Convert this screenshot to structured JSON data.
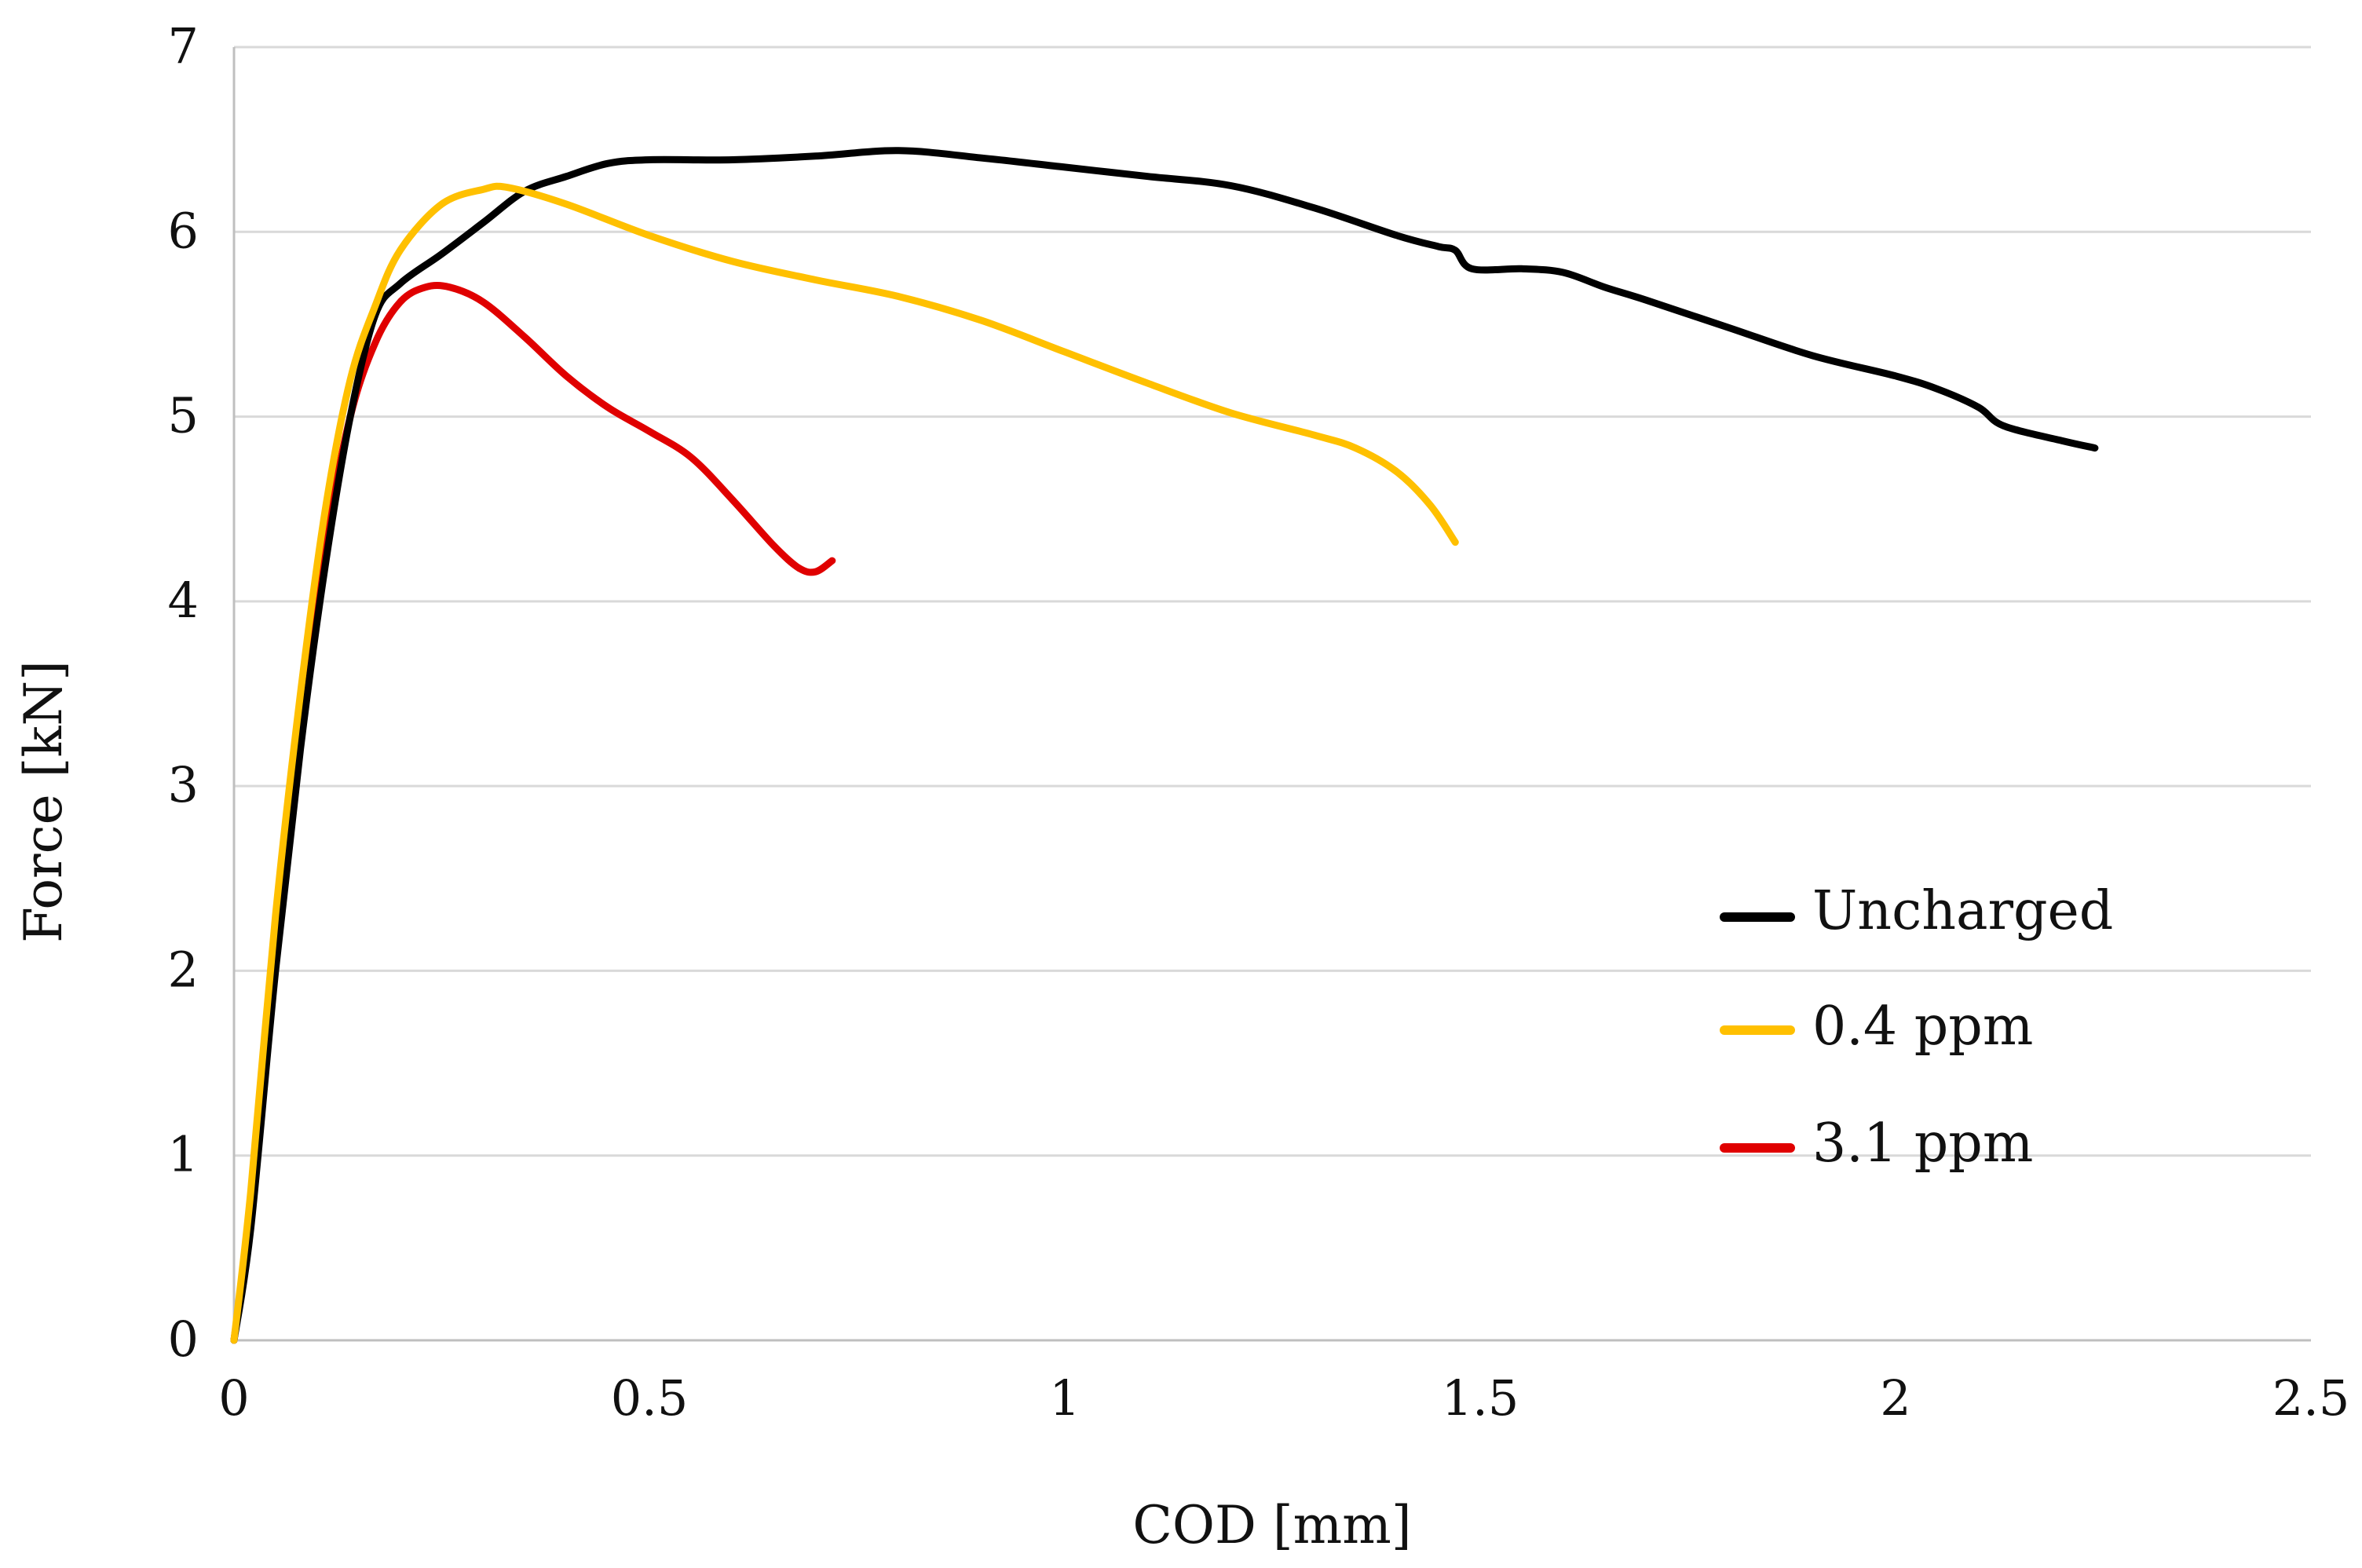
{
  "chart_data": {
    "type": "line",
    "title": "",
    "xlabel": "COD [mm]",
    "ylabel": "Force [kN]",
    "xlim": [
      0,
      2.5
    ],
    "ylim": [
      0,
      7
    ],
    "x_ticks": [
      0,
      0.5,
      1,
      1.5,
      2,
      2.5
    ],
    "x_tick_labels": [
      "0",
      "0.5",
      "1",
      "1.5",
      "2",
      "2.5"
    ],
    "y_ticks": [
      0,
      1,
      2,
      3,
      4,
      5,
      6,
      7
    ],
    "y_tick_labels": [
      "0",
      "1",
      "2",
      "3",
      "4",
      "5",
      "6",
      "7"
    ],
    "grid": "horizontal",
    "legend_position": "center-right",
    "series": [
      {
        "name": "Uncharged",
        "color": "#000000",
        "points": [
          [
            0,
            0
          ],
          [
            0.02,
            0.6
          ],
          [
            0.05,
            2.0
          ],
          [
            0.08,
            3.2
          ],
          [
            0.11,
            4.2
          ],
          [
            0.14,
            5.0
          ],
          [
            0.17,
            5.55
          ],
          [
            0.2,
            5.72
          ],
          [
            0.25,
            5.88
          ],
          [
            0.3,
            6.05
          ],
          [
            0.35,
            6.22
          ],
          [
            0.4,
            6.3
          ],
          [
            0.45,
            6.37
          ],
          [
            0.5,
            6.39
          ],
          [
            0.6,
            6.39
          ],
          [
            0.7,
            6.41
          ],
          [
            0.8,
            6.44
          ],
          [
            0.9,
            6.4
          ],
          [
            1.0,
            6.35
          ],
          [
            1.1,
            6.3
          ],
          [
            1.2,
            6.25
          ],
          [
            1.3,
            6.13
          ],
          [
            1.4,
            5.98
          ],
          [
            1.45,
            5.92
          ],
          [
            1.47,
            5.9
          ],
          [
            1.49,
            5.8
          ],
          [
            1.55,
            5.8
          ],
          [
            1.6,
            5.78
          ],
          [
            1.65,
            5.7
          ],
          [
            1.7,
            5.63
          ],
          [
            1.8,
            5.48
          ],
          [
            1.9,
            5.33
          ],
          [
            2.0,
            5.22
          ],
          [
            2.05,
            5.15
          ],
          [
            2.1,
            5.05
          ],
          [
            2.13,
            4.95
          ],
          [
            2.2,
            4.87
          ],
          [
            2.24,
            4.83
          ]
        ]
      },
      {
        "name": "0.4 ppm",
        "color": "#ffc000",
        "points": [
          [
            0,
            0
          ],
          [
            0.02,
            0.8
          ],
          [
            0.05,
            2.3
          ],
          [
            0.08,
            3.5
          ],
          [
            0.11,
            4.5
          ],
          [
            0.14,
            5.2
          ],
          [
            0.17,
            5.6
          ],
          [
            0.2,
            5.9
          ],
          [
            0.25,
            6.15
          ],
          [
            0.3,
            6.23
          ],
          [
            0.33,
            6.24
          ],
          [
            0.4,
            6.15
          ],
          [
            0.5,
            5.98
          ],
          [
            0.6,
            5.84
          ],
          [
            0.7,
            5.74
          ],
          [
            0.8,
            5.65
          ],
          [
            0.9,
            5.52
          ],
          [
            1.0,
            5.35
          ],
          [
            1.1,
            5.18
          ],
          [
            1.2,
            5.02
          ],
          [
            1.3,
            4.9
          ],
          [
            1.35,
            4.83
          ],
          [
            1.4,
            4.7
          ],
          [
            1.44,
            4.52
          ],
          [
            1.47,
            4.32
          ]
        ]
      },
      {
        "name": "3.1 ppm",
        "color": "#e00000",
        "points": [
          [
            0,
            0
          ],
          [
            0.02,
            0.7
          ],
          [
            0.05,
            2.1
          ],
          [
            0.08,
            3.3
          ],
          [
            0.11,
            4.3
          ],
          [
            0.14,
            5.0
          ],
          [
            0.17,
            5.4
          ],
          [
            0.2,
            5.62
          ],
          [
            0.23,
            5.7
          ],
          [
            0.26,
            5.7
          ],
          [
            0.3,
            5.62
          ],
          [
            0.35,
            5.43
          ],
          [
            0.4,
            5.22
          ],
          [
            0.45,
            5.05
          ],
          [
            0.5,
            4.92
          ],
          [
            0.55,
            4.78
          ],
          [
            0.6,
            4.55
          ],
          [
            0.65,
            4.3
          ],
          [
            0.68,
            4.18
          ],
          [
            0.7,
            4.16
          ],
          [
            0.72,
            4.22
          ]
        ]
      }
    ]
  }
}
